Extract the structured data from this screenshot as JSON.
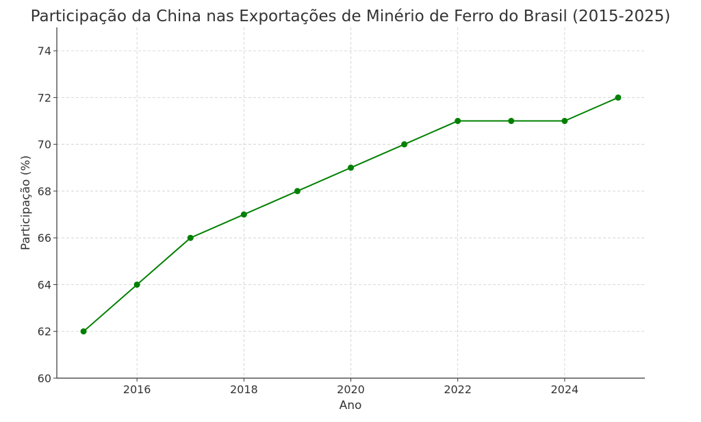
{
  "chart_data": {
    "type": "line",
    "title": "Participação da China nas Exportações de Minério de Ferro do Brasil (2015-2025)",
    "xlabel": "Ano",
    "ylabel": "Participação (%)",
    "x": [
      2015,
      2016,
      2017,
      2018,
      2019,
      2020,
      2021,
      2022,
      2023,
      2024,
      2025
    ],
    "series": [
      {
        "name": "Participação",
        "values": [
          62,
          64,
          66,
          67,
          68,
          69,
          70,
          71,
          71,
          71,
          72
        ],
        "color": "#008000",
        "marker": "circle"
      }
    ],
    "xlim": [
      2014.5,
      2025.5
    ],
    "ylim": [
      60,
      75
    ],
    "xticks": [
      2016,
      2018,
      2020,
      2022,
      2024
    ],
    "yticks": [
      60,
      62,
      64,
      66,
      68,
      70,
      72,
      74
    ],
    "grid": true,
    "legend": "none"
  }
}
